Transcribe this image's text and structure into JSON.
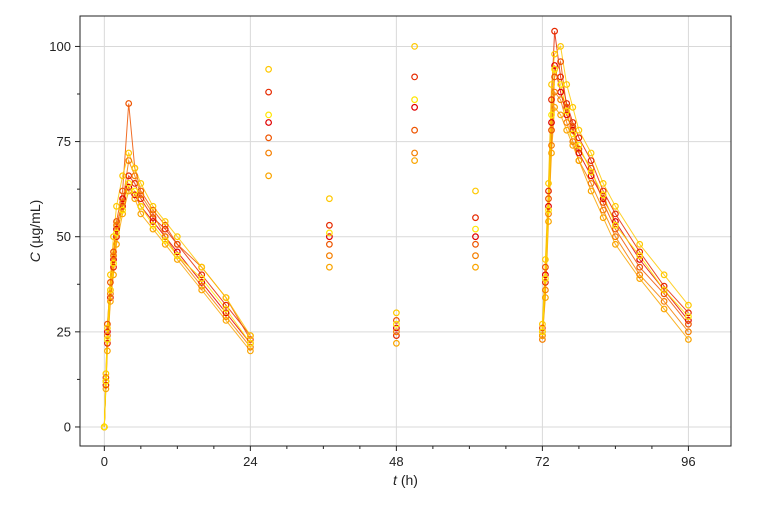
{
  "chart_data": {
    "type": "scatter",
    "title": "",
    "xlabel": {
      "symbol": "t",
      "unit": " (h)"
    },
    "ylabel": {
      "symbol": "C",
      "unit": " (µg/mL)"
    },
    "xlim": [
      -4,
      103
    ],
    "ylim": [
      -5,
      108
    ],
    "xticks": [
      0,
      24,
      48,
      72,
      96
    ],
    "xtick_labels": [
      "0",
      "24",
      "48",
      "72",
      "96"
    ],
    "yticks": [
      0,
      25,
      50,
      75,
      100
    ],
    "ytick_labels": [
      "0",
      "25",
      "50",
      "75",
      "100"
    ],
    "grid": true,
    "marker": "open-circle",
    "colors": [
      "#e00000",
      "#e62a00",
      "#ee5500",
      "#f57f00",
      "#faa500",
      "#ffc800",
      "#ffe600"
    ],
    "series": [
      {
        "x": [
          0,
          0.25,
          0.5,
          1,
          1.5,
          2,
          3,
          4,
          5,
          6,
          8,
          10,
          12,
          16,
          20,
          24,
          27,
          37,
          48,
          51,
          61,
          72,
          72.5,
          73,
          73.5,
          74,
          75,
          76,
          77,
          78,
          80,
          82,
          84,
          88,
          92,
          96
        ],
        "y": [
          0,
          12,
          25,
          36,
          44,
          52,
          60,
          63,
          61,
          58,
          54,
          50,
          46,
          38,
          30,
          22,
          80,
          50,
          26,
          84,
          50,
          25,
          40,
          58,
          80,
          95,
          88,
          82,
          78,
          72,
          66,
          60,
          54,
          44,
          36,
          28
        ]
      },
      {
        "x": [
          0,
          0.25,
          0.5,
          1,
          1.5,
          2,
          3,
          4,
          5,
          6,
          8,
          10,
          12,
          16,
          20,
          24,
          27,
          37,
          48,
          51,
          61,
          72,
          72.5,
          73,
          73.5,
          74,
          75,
          76,
          77,
          78,
          80,
          82,
          84,
          88,
          92,
          96
        ],
        "y": [
          0,
          11,
          22,
          34,
          42,
          50,
          58,
          66,
          64,
          60,
          55,
          52,
          48,
          40,
          32,
          24,
          88,
          53,
          24,
          92,
          55,
          24,
          38,
          62,
          86,
          104,
          92,
          85,
          80,
          76,
          70,
          62,
          56,
          46,
          37,
          30
        ]
      },
      {
        "x": [
          0,
          0.25,
          0.5,
          1,
          1.5,
          2,
          3,
          4,
          5,
          6,
          8,
          10,
          12,
          16,
          20,
          24,
          27,
          37,
          48,
          51,
          61,
          72,
          72.5,
          73,
          73.5,
          74,
          75,
          76,
          77,
          78,
          80,
          82,
          84,
          88,
          92,
          96
        ],
        "y": [
          0,
          13,
          27,
          38,
          46,
          54,
          62,
          85,
          68,
          62,
          57,
          53,
          48,
          42,
          34,
          23,
          76,
          48,
          28,
          78,
          48,
          26,
          42,
          60,
          78,
          92,
          96,
          84,
          79,
          73,
          68,
          59,
          52,
          42,
          35,
          27
        ]
      },
      {
        "x": [
          0,
          0.25,
          0.5,
          1,
          1.5,
          2,
          3,
          4,
          5,
          6,
          8,
          10,
          12,
          16,
          20,
          24,
          27,
          37,
          48,
          51,
          61,
          72,
          72.5,
          73,
          73.5,
          74,
          75,
          76,
          77,
          78,
          80,
          82,
          84,
          88,
          92,
          96
        ],
        "y": [
          0,
          12,
          24,
          35,
          45,
          53,
          59,
          70,
          66,
          61,
          56,
          50,
          45,
          37,
          29,
          21,
          72,
          45,
          25,
          72,
          45,
          23,
          36,
          56,
          74,
          88,
          86,
          80,
          75,
          70,
          64,
          57,
          50,
          40,
          33,
          25
        ]
      },
      {
        "x": [
          0,
          0.25,
          0.5,
          1,
          1.5,
          2,
          3,
          4,
          5,
          6,
          8,
          10,
          12,
          16,
          20,
          24,
          27,
          37,
          48,
          51,
          61,
          72,
          72.5,
          73,
          73.5,
          74,
          75,
          76,
          77,
          78,
          80,
          82,
          84,
          88,
          92,
          96
        ],
        "y": [
          0,
          10,
          20,
          33,
          40,
          48,
          56,
          62,
          60,
          56,
          52,
          48,
          44,
          36,
          28,
          20,
          66,
          42,
          22,
          70,
          42,
          24,
          34,
          54,
          72,
          84,
          82,
          78,
          74,
          70,
          62,
          55,
          48,
          39,
          31,
          23
        ]
      },
      {
        "x": [
          0,
          0.25,
          0.5,
          1,
          1.5,
          2,
          3,
          4,
          5,
          6,
          8,
          10,
          12,
          16,
          20,
          24,
          27,
          37,
          48,
          51,
          61,
          72,
          72.5,
          73,
          73.5,
          74,
          75,
          76,
          77,
          78,
          80,
          82,
          84,
          88,
          92,
          96
        ],
        "y": [
          0,
          14,
          26,
          40,
          50,
          58,
          66,
          72,
          68,
          64,
          58,
          54,
          50,
          42,
          34,
          24,
          94,
          60,
          30,
          100,
          62,
          27,
          44,
          64,
          90,
          98,
          100,
          90,
          84,
          78,
          72,
          64,
          58,
          48,
          40,
          32
        ]
      },
      {
        "x": [
          0,
          0.25,
          0.5,
          1,
          1.5,
          2,
          3,
          4,
          5,
          6,
          8,
          10,
          12,
          16,
          20,
          24,
          27,
          37,
          48,
          51,
          61,
          72,
          72.5,
          73,
          73.5,
          74,
          75,
          76,
          77,
          78,
          80,
          82,
          84,
          88,
          92,
          96
        ],
        "y": [
          0,
          12,
          23,
          36,
          43,
          51,
          57,
          64,
          62,
          58,
          53,
          49,
          45,
          39,
          31,
          22,
          82,
          51,
          27,
          86,
          52,
          25,
          39,
          57,
          82,
          94,
          90,
          83,
          77,
          74,
          67,
          61,
          53,
          45,
          36,
          29
        ]
      }
    ]
  }
}
